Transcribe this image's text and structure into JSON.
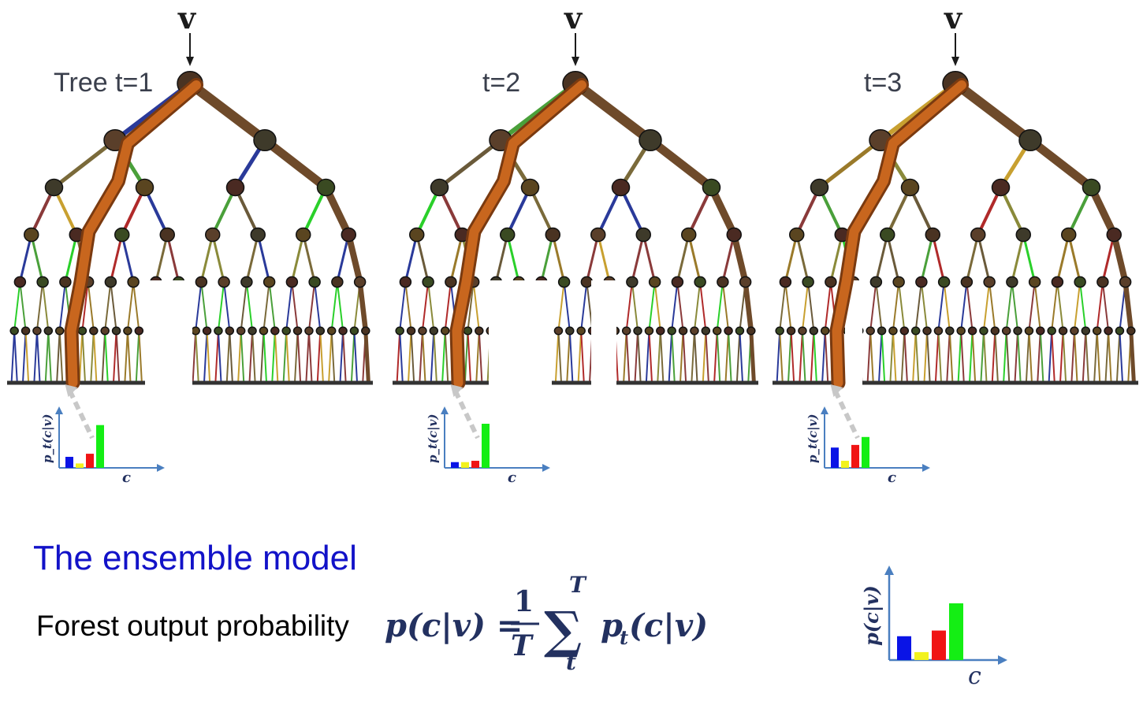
{
  "input_symbol": "v",
  "trees": [
    {
      "label": "Tree t=1",
      "hist_values": [
        0.25,
        0.1,
        0.32,
        0.97
      ]
    },
    {
      "label": "t=2",
      "hist_values": [
        0.13,
        0.13,
        0.16,
        1.0
      ]
    },
    {
      "label": "t=3",
      "hist_values": [
        0.46,
        0.16,
        0.52,
        0.7
      ]
    }
  ],
  "hist_axis": {
    "ylabel": "p_t(c|v)",
    "xlabel": "c"
  },
  "hist_colors": [
    "#0a14e6",
    "#f2f21e",
    "#f01414",
    "#14ee14"
  ],
  "ensemble": {
    "title": "The ensemble model",
    "formula_label": "Forest output probability",
    "formula": "p(c|v) = 1/T Σ_t^T p_t(c|v)",
    "hist_values": [
      0.42,
      0.14,
      0.52,
      1.0
    ],
    "hist_axis": {
      "ylabel": "p(c|v)",
      "xlabel": "c"
    }
  },
  "colors": {
    "path": "#c8661e",
    "trunk": "#6e4a2a",
    "title": "#1212c8",
    "axis": "#4a7fc0"
  }
}
